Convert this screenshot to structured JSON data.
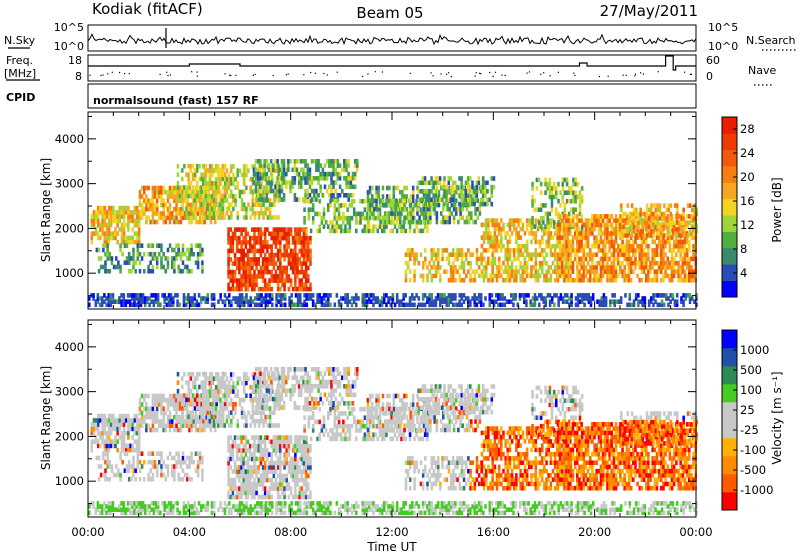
{
  "header": {
    "radar": "Kodiak (fitACF)",
    "beam": "Beam 05",
    "date": "27/May/2011"
  },
  "sky_panel": {
    "left_label": "N.Sky",
    "right_label": "N.Search",
    "left_ticks": [
      "10^5",
      "10^0"
    ],
    "right_ticks": [
      "10^5",
      "10^0"
    ]
  },
  "freq_panel": {
    "left_label_line1": "Freq.",
    "left_label_line2": "[MHz]",
    "right_label": "Nave",
    "left_ticks": [
      "18",
      "8"
    ],
    "right_ticks": [
      "60",
      "0"
    ]
  },
  "cpid": {
    "label": "CPID",
    "value": "normalsound (fast) 157 RF"
  },
  "colors": {
    "power": [
      "#0000ff",
      "#2a4db5",
      "#3c8a6e",
      "#4fae3c",
      "#9ed63a",
      "#f2d522",
      "#f5a623",
      "#f77f0f",
      "#f25a0a",
      "#ee3b05",
      "#e81e00"
    ],
    "velocity": [
      "#ff0000",
      "#ff5a00",
      "#ff8c00",
      "#ffb300",
      "#c8c8c8",
      "#c8c8c8",
      "#44cc22",
      "#2e8b57",
      "#2050a8",
      "#0000ff"
    ]
  },
  "chart_data": [
    {
      "type": "heatmap",
      "ylabel": "Slant Range [km]",
      "ylim": [
        200,
        4600
      ],
      "y_ticks": [
        "1000",
        "2000",
        "3000",
        "4000"
      ],
      "colorbar_label": "Power [dB]",
      "colorbar_ticks": [
        "4",
        "8",
        "12",
        "16",
        "20",
        "24",
        "28"
      ],
      "colorbar_range": [
        0,
        30
      ]
    },
    {
      "type": "heatmap",
      "ylabel": "Slant Range [km]",
      "xlabel": "Time UT",
      "ylim": [
        200,
        4600
      ],
      "y_ticks": [
        "1000",
        "2000",
        "3000",
        "4000"
      ],
      "x_ticks": [
        "00:00",
        "04:00",
        "08:00",
        "12:00",
        "16:00",
        "20:00",
        "00:00"
      ],
      "colorbar_label": "Velocity [m s⁻¹]",
      "colorbar_ticks": [
        "1000",
        "500",
        "100",
        "25",
        "-25",
        "-100",
        "-500",
        "-1000"
      ]
    }
  ]
}
